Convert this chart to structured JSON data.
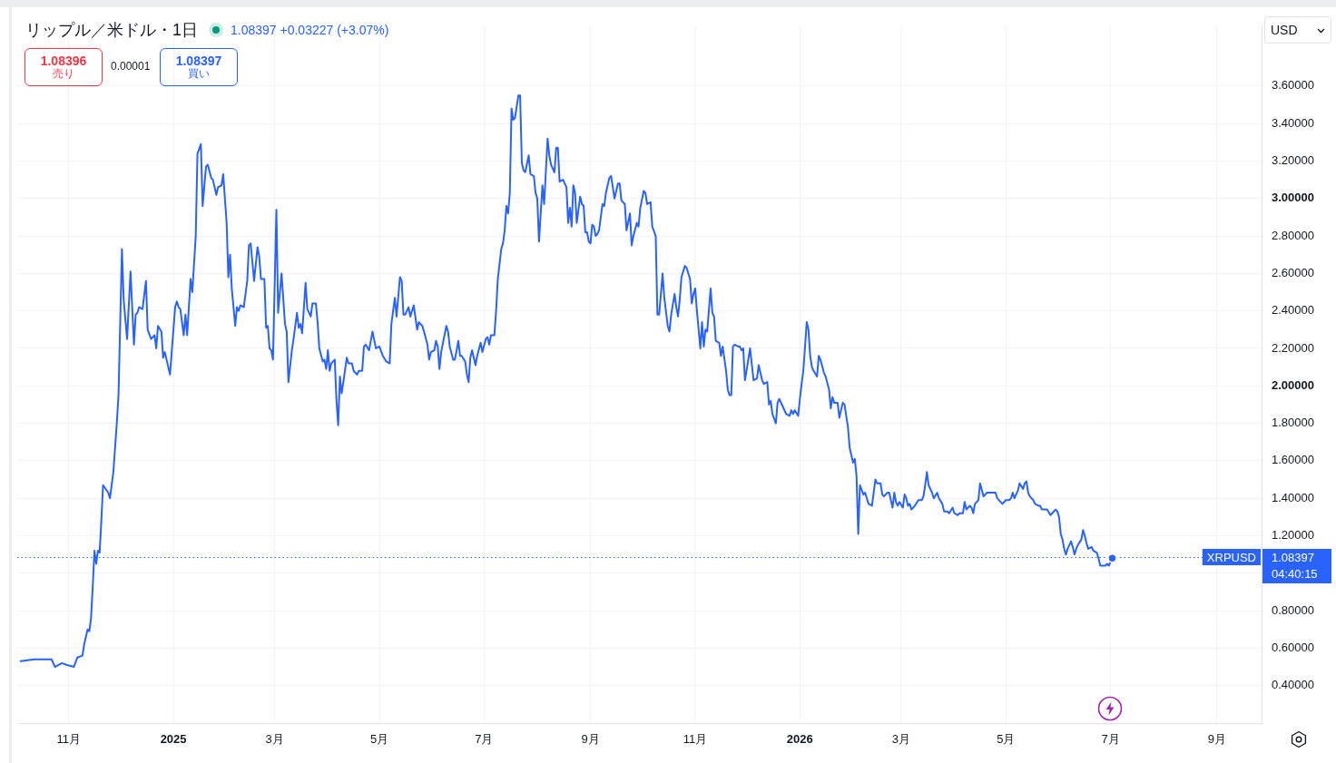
{
  "chart_data": {
    "type": "line",
    "title": "リップル／米ドル・1日",
    "subtitle": "1.08397 +0.03227 (+3.07%)",
    "x": [
      "2024-10-04",
      "2024-10-12",
      "2024-10-22",
      "2024-10-24",
      "2024-10-28",
      "2024-10-31",
      "2024-11-04",
      "2024-11-06",
      "2024-11-09",
      "2024-11-10",
      "2024-11-12",
      "2024-11-13",
      "2024-11-14",
      "2024-11-15",
      "2024-11-16",
      "2024-11-17",
      "2024-11-18",
      "2024-11-19",
      "2024-11-20",
      "2024-11-21",
      "2024-11-24",
      "2024-11-25",
      "2024-11-27",
      "2024-11-29",
      "2024-11-30",
      "2024-12-02",
      "2024-12-03",
      "2024-12-05",
      "2024-12-07",
      "2024-12-09",
      "2024-12-10",
      "2024-12-11",
      "2024-12-12",
      "2024-12-14",
      "2024-12-16",
      "2024-12-17",
      "2024-12-19",
      "2024-12-21",
      "2024-12-22",
      "2024-12-23",
      "2024-12-25",
      "2024-12-26",
      "2024-12-27",
      "2024-12-30",
      "2025-01-02",
      "2025-01-03",
      "2025-01-04",
      "2025-01-05",
      "2025-01-07",
      "2025-01-08",
      "2025-01-09",
      "2025-01-11",
      "2025-01-12",
      "2025-01-14",
      "2025-01-15",
      "2025-01-17",
      "2025-01-18",
      "2025-01-20",
      "2025-01-21",
      "2025-01-23",
      "2025-01-24",
      "2025-01-26",
      "2025-01-27",
      "2025-01-29",
      "2025-01-30",
      "2025-02-01",
      "2025-02-02",
      "2025-02-03",
      "2025-02-04",
      "2025-02-06",
      "2025-02-07",
      "2025-02-08",
      "2025-02-09",
      "2025-02-11",
      "2025-02-13",
      "2025-02-14",
      "2025-02-15",
      "2025-02-17",
      "2025-02-19",
      "2025-02-20",
      "2025-02-21",
      "2025-02-23",
      "2025-02-24",
      "2025-02-25",
      "2025-02-26",
      "2025-02-27",
      "2025-02-28",
      "2025-03-02",
      "2025-03-03",
      "2025-03-05",
      "2025-03-07",
      "2025-03-08",
      "2025-03-09",
      "2025-03-11",
      "2025-03-12",
      "2025-03-14",
      "2025-03-15",
      "2025-03-16",
      "2025-03-17",
      "2025-03-19",
      "2025-03-20",
      "2025-03-22",
      "2025-03-23",
      "2025-03-25",
      "2025-03-26",
      "2025-03-27",
      "2025-03-29",
      "2025-03-30",
      "2025-03-31",
      "2025-04-01",
      "2025-04-02",
      "2025-04-03",
      "2025-04-05",
      "2025-04-06",
      "2025-04-07",
      "2025-04-08",
      "2025-04-09",
      "2025-04-10",
      "2025-04-12",
      "2025-04-13",
      "2025-04-15",
      "2025-04-16",
      "2025-04-18",
      "2025-04-19",
      "2025-04-21",
      "2025-04-22",
      "2025-04-23",
      "2025-04-25",
      "2025-04-27",
      "2025-04-29",
      "2025-05-01",
      "2025-05-03",
      "2025-05-05",
      "2025-05-07",
      "2025-05-08",
      "2025-05-10",
      "2025-05-11",
      "2025-05-13",
      "2025-05-14",
      "2025-05-15",
      "2025-05-16",
      "2025-05-18",
      "2025-05-19",
      "2025-05-21",
      "2025-05-23",
      "2025-05-24",
      "2025-05-26",
      "2025-05-27",
      "2025-05-29",
      "2025-05-30",
      "2025-05-31",
      "2025-06-02",
      "2025-06-03",
      "2025-06-04",
      "2025-06-05",
      "2025-06-06",
      "2025-06-09",
      "2025-06-10",
      "2025-06-11",
      "2025-06-13",
      "2025-06-14",
      "2025-06-16",
      "2025-06-17",
      "2025-06-18",
      "2025-06-20",
      "2025-06-21",
      "2025-06-22",
      "2025-06-23",
      "2025-06-24",
      "2025-06-26",
      "2025-06-27",
      "2025-06-29",
      "2025-06-30",
      "2025-07-02",
      "2025-07-03",
      "2025-07-04",
      "2025-07-05",
      "2025-07-07",
      "2025-07-08",
      "2025-07-09",
      "2025-07-11",
      "2025-07-12",
      "2025-07-13",
      "2025-07-14",
      "2025-07-15",
      "2025-07-16",
      "2025-07-17",
      "2025-07-18",
      "2025-07-19",
      "2025-07-21",
      "2025-07-22",
      "2025-07-23",
      "2025-07-24",
      "2025-07-25",
      "2025-07-27",
      "2025-07-28",
      "2025-07-30",
      "2025-07-31",
      "2025-08-01",
      "2025-08-02",
      "2025-08-04",
      "2025-08-05",
      "2025-08-07",
      "2025-08-08",
      "2025-08-09",
      "2025-08-11",
      "2025-08-12",
      "2025-08-13",
      "2025-08-14",
      "2025-08-16",
      "2025-08-18",
      "2025-08-19",
      "2025-08-20",
      "2025-08-21",
      "2025-08-22",
      "2025-08-23",
      "2025-08-24",
      "2025-08-26",
      "2025-08-27",
      "2025-08-28",
      "2025-08-29",
      "2025-08-30",
      "2025-08-31",
      "2025-09-01",
      "2025-09-02",
      "2025-09-03",
      "2025-09-04",
      "2025-09-05",
      "2025-09-06",
      "2025-09-08",
      "2025-09-09",
      "2025-09-10",
      "2025-09-12",
      "2025-09-13",
      "2025-09-15",
      "2025-09-17",
      "2025-09-18",
      "2025-09-19",
      "2025-09-21",
      "2025-09-22",
      "2025-09-24",
      "2025-09-25",
      "2025-09-26",
      "2025-09-28",
      "2025-09-29",
      "2025-09-30",
      "2025-10-02",
      "2025-10-03",
      "2025-10-04",
      "2025-10-06",
      "2025-10-07",
      "2025-10-09",
      "2025-10-10",
      "2025-10-11",
      "2025-10-13",
      "2025-10-14",
      "2025-10-16",
      "2025-10-17",
      "2025-10-18",
      "2025-10-20",
      "2025-10-21",
      "2025-10-22",
      "2025-10-23",
      "2025-10-24",
      "2025-10-26",
      "2025-10-27",
      "2025-10-29",
      "2025-10-30",
      "2025-10-31",
      "2025-11-01",
      "2025-11-02",
      "2025-11-04",
      "2025-11-05",
      "2025-11-06",
      "2025-11-07",
      "2025-11-08",
      "2025-11-10",
      "2025-11-11",
      "2025-11-12",
      "2025-11-13",
      "2025-11-15",
      "2025-11-16",
      "2025-11-17",
      "2025-11-19",
      "2025-11-20",
      "2025-11-21",
      "2025-11-22",
      "2025-11-23",
      "2025-11-24",
      "2025-11-26",
      "2025-11-27",
      "2025-11-28",
      "2025-11-29",
      "2025-11-30",
      "2025-12-03",
      "2025-12-05",
      "2025-12-07",
      "2025-12-08",
      "2025-12-10",
      "2025-12-11",
      "2025-12-13",
      "2025-12-14",
      "2025-12-15",
      "2025-12-16",
      "2025-12-18",
      "2025-12-19",
      "2025-12-20",
      "2025-12-22",
      "2025-12-24",
      "2025-12-26",
      "2025-12-27",
      "2025-12-28",
      "2025-12-29",
      "2025-12-31",
      "2026-01-01",
      "2026-01-02",
      "2026-01-03",
      "2026-01-05",
      "2026-01-06",
      "2026-01-07",
      "2026-01-08",
      "2026-01-09",
      "2026-01-11",
      "2026-01-12",
      "2026-01-13",
      "2026-01-15",
      "2026-01-16",
      "2026-01-18",
      "2026-01-19",
      "2026-01-20",
      "2026-01-21",
      "2026-01-23",
      "2026-01-24",
      "2026-01-26",
      "2026-01-27",
      "2026-01-29",
      "2026-01-30",
      "2026-02-01",
      "2026-02-02",
      "2026-02-03",
      "2026-02-04",
      "2026-02-05",
      "2026-02-07",
      "2026-02-08",
      "2026-02-10",
      "2026-02-12",
      "2026-02-14",
      "2026-02-15",
      "2026-02-17",
      "2026-02-18",
      "2026-02-19",
      "2026-02-21",
      "2026-02-22",
      "2026-02-24",
      "2026-02-25",
      "2026-02-26",
      "2026-02-27",
      "2026-02-28",
      "2026-03-02",
      "2026-03-03",
      "2026-03-04",
      "2026-03-05",
      "2026-03-06",
      "2026-03-07",
      "2026-03-09",
      "2026-03-11",
      "2026-03-13",
      "2026-03-14",
      "2026-03-15",
      "2026-03-16",
      "2026-03-17",
      "2026-03-19",
      "2026-03-20",
      "2026-03-22",
      "2026-03-23",
      "2026-03-25",
      "2026-03-26",
      "2026-03-28",
      "2026-03-29",
      "2026-03-31",
      "2026-04-01",
      "2026-04-03",
      "2026-04-04",
      "2026-04-06",
      "2026-04-07",
      "2026-04-08",
      "2026-04-10",
      "2026-04-11",
      "2026-04-12",
      "2026-04-13",
      "2026-04-15",
      "2026-04-16",
      "2026-04-18",
      "2026-04-20",
      "2026-04-21",
      "2026-04-23",
      "2026-04-25",
      "2026-04-26",
      "2026-04-28",
      "2026-04-29",
      "2026-05-01",
      "2026-05-03",
      "2026-05-04",
      "2026-05-05",
      "2026-05-06",
      "2026-05-08",
      "2026-05-09",
      "2026-05-11",
      "2026-05-12",
      "2026-05-13",
      "2026-05-14",
      "2026-05-15",
      "2026-05-17",
      "2026-05-18",
      "2026-05-20",
      "2026-05-21",
      "2026-05-22",
      "2026-05-24",
      "2026-05-25",
      "2026-05-27",
      "2026-05-28",
      "2026-05-30",
      "2026-05-31",
      "2026-06-01",
      "2026-06-02",
      "2026-06-03",
      "2026-06-04",
      "2026-06-05",
      "2026-06-06",
      "2026-06-08",
      "2026-06-09",
      "2026-06-10",
      "2026-06-11",
      "2026-06-12",
      "2026-06-14",
      "2026-06-15",
      "2026-06-16",
      "2026-06-17",
      "2026-06-18",
      "2026-06-20",
      "2026-06-21",
      "2026-06-23",
      "2026-06-24",
      "2026-06-25",
      "2026-06-27",
      "2026-06-28",
      "2026-06-29",
      "2026-06-30",
      "2026-07-01",
      "2026-07-02"
    ],
    "series": [
      {
        "color": "#2962ff",
        "values": [
          0.53,
          0.54,
          0.54,
          0.5,
          0.52,
          0.51,
          0.5,
          0.55,
          0.56,
          0.62,
          0.7,
          0.69,
          0.76,
          0.93,
          1.12,
          1.05,
          1.12,
          1.11,
          1.28,
          1.47,
          1.43,
          1.4,
          1.54,
          1.8,
          1.95,
          2.73,
          2.46,
          2.25,
          2.61,
          2.22,
          2.38,
          2.39,
          2.42,
          2.41,
          2.56,
          2.3,
          2.25,
          2.27,
          2.2,
          2.32,
          2.29,
          2.15,
          2.18,
          2.06,
          2.42,
          2.45,
          2.42,
          2.41,
          2.27,
          2.38,
          2.27,
          2.57,
          2.5,
          2.8,
          3.24,
          3.29,
          2.96,
          3.17,
          3.18,
          3.11,
          3.1,
          3.02,
          3.06,
          3.07,
          3.13,
          2.87,
          2.58,
          2.7,
          2.52,
          2.32,
          2.42,
          2.4,
          2.43,
          2.42,
          2.56,
          2.75,
          2.76,
          2.56,
          2.74,
          2.69,
          2.57,
          2.57,
          2.31,
          2.32,
          2.2,
          2.19,
          2.14,
          2.94,
          2.39,
          2.6,
          2.33,
          2.29,
          2.02,
          2.19,
          2.25,
          2.39,
          2.31,
          2.33,
          2.28,
          2.55,
          2.41,
          2.37,
          2.44,
          2.44,
          2.34,
          2.2,
          2.13,
          2.14,
          2.09,
          2.19,
          2.08,
          2.12,
          2.14,
          1.92,
          1.79,
          2.05,
          1.96,
          2.02,
          2.15,
          2.12,
          2.12,
          2.08,
          2.06,
          2.08,
          2.08,
          2.21,
          2.22,
          2.19,
          2.29,
          2.2,
          2.21,
          2.16,
          2.13,
          2.12,
          2.33,
          2.47,
          2.37,
          2.58,
          2.56,
          2.38,
          2.38,
          2.42,
          2.37,
          2.43,
          2.3,
          2.34,
          2.32,
          2.29,
          2.22,
          2.14,
          2.18,
          2.19,
          2.24,
          2.21,
          2.09,
          2.18,
          2.32,
          2.29,
          2.21,
          2.14,
          2.14,
          2.24,
          2.16,
          2.16,
          2.13,
          2.06,
          2.02,
          2.15,
          2.19,
          2.11,
          2.16,
          2.23,
          2.18,
          2.25,
          2.26,
          2.22,
          2.27,
          2.27,
          2.4,
          2.57,
          2.73,
          2.76,
          2.83,
          2.96,
          2.92,
          3.03,
          3.48,
          3.42,
          3.43,
          3.55,
          3.55,
          3.19,
          3.15,
          3.14,
          3.23,
          3.13,
          3.12,
          3.03,
          3.0,
          2.77,
          3.07,
          2.97,
          3.32,
          3.23,
          3.18,
          3.14,
          3.27,
          3.27,
          3.09,
          3.1,
          3.06,
          2.87,
          2.95,
          2.85,
          3.07,
          3.03,
          2.87,
          3.01,
          2.97,
          2.96,
          2.82,
          2.82,
          2.77,
          2.76,
          2.86,
          2.85,
          2.8,
          2.81,
          2.83,
          2.97,
          2.96,
          3.03,
          3.11,
          3.12,
          3.0,
          3.08,
          3.08,
          2.99,
          2.97,
          2.83,
          2.92,
          2.75,
          2.8,
          2.87,
          2.85,
          2.95,
          3.04,
          3.03,
          2.97,
          2.98,
          2.85,
          2.8,
          2.38,
          2.38,
          2.6,
          2.47,
          2.32,
          2.29,
          2.38,
          2.49,
          2.42,
          2.37,
          2.46,
          2.58,
          2.64,
          2.63,
          2.57,
          2.44,
          2.49,
          2.52,
          2.4,
          2.2,
          2.34,
          2.21,
          2.3,
          2.29,
          2.52,
          2.39,
          2.37,
          2.24,
          2.23,
          2.16,
          2.21,
          2.08,
          1.98,
          1.95,
          1.95,
          2.21,
          2.22,
          2.21,
          2.21,
          2.19,
          2.2,
          2.03,
          2.2,
          2.03,
          2.04,
          2.11,
          2.03,
          2.01,
          2.02,
          1.9,
          1.92,
          1.85,
          1.8,
          1.91,
          1.93,
          1.89,
          1.85,
          1.84,
          1.87,
          1.85,
          1.87,
          1.84,
          1.93,
          2.01,
          2.08,
          2.34,
          2.3,
          2.16,
          2.1,
          2.08,
          2.05,
          2.16,
          2.14,
          2.07,
          2.05,
          1.98,
          1.88,
          1.94,
          1.91,
          1.91,
          1.83,
          1.91,
          1.9,
          1.78,
          1.67,
          1.59,
          1.61,
          1.52,
          1.21,
          1.47,
          1.42,
          1.43,
          1.37,
          1.36,
          1.5,
          1.48,
          1.48,
          1.42,
          1.41,
          1.43,
          1.43,
          1.35,
          1.43,
          1.38,
          1.36,
          1.38,
          1.35,
          1.42,
          1.4,
          1.36,
          1.37,
          1.34,
          1.36,
          1.39,
          1.39,
          1.41,
          1.47,
          1.54,
          1.47,
          1.43,
          1.4,
          1.43,
          1.4,
          1.37,
          1.33,
          1.33,
          1.32,
          1.35,
          1.32,
          1.31,
          1.32,
          1.32,
          1.38,
          1.34,
          1.36,
          1.35,
          1.32,
          1.37,
          1.39,
          1.48,
          1.41,
          1.43,
          1.43,
          1.43,
          1.43,
          1.4,
          1.38,
          1.37,
          1.39,
          1.39,
          1.4,
          1.43,
          1.4,
          1.44,
          1.48,
          1.45,
          1.48,
          1.49,
          1.43,
          1.41,
          1.39,
          1.37,
          1.36,
          1.36,
          1.34,
          1.34,
          1.34,
          1.31,
          1.32,
          1.34,
          1.33,
          1.3,
          1.21,
          1.18,
          1.13,
          1.1,
          1.13,
          1.17,
          1.14,
          1.1,
          1.13,
          1.15,
          1.18,
          1.23,
          1.2,
          1.16,
          1.13,
          1.14,
          1.12,
          1.11,
          1.08,
          1.04,
          1.04,
          1.04,
          1.05,
          1.04,
          1.06,
          1.08
        ]
      },
      {
        "type": "scatter",
        "marker": "circle",
        "color": "#2962ff",
        "x": [
          "2026-07-02"
        ],
        "values": [
          1.08
        ]
      }
    ],
    "xlim": [
      "2024-10-02",
      "2026-09-27"
    ],
    "xticks": [
      {
        "value": "2024-11-01",
        "label": "11月"
      },
      {
        "value": "2025-01-01",
        "label": "2025"
      },
      {
        "value": "2025-03-01",
        "label": "3月"
      },
      {
        "value": "2025-05-01",
        "label": "5月"
      },
      {
        "value": "2025-07-01",
        "label": "7月"
      },
      {
        "value": "2025-09-01",
        "label": "9月"
      },
      {
        "value": "2025-11-01",
        "label": "11月"
      },
      {
        "value": "2026-01-01",
        "label": "2026"
      },
      {
        "value": "2026-03-01",
        "label": "3月"
      },
      {
        "value": "2026-05-01",
        "label": "5月"
      },
      {
        "value": "2026-07-01",
        "label": "7月"
      },
      {
        "value": "2026-09-01",
        "label": "9月"
      }
    ],
    "ylim": [
      0.2,
      3.92
    ],
    "yticks": [
      {
        "value": 0.4,
        "label": "0.40000"
      },
      {
        "value": 0.6,
        "label": "0.60000"
      },
      {
        "value": 0.8,
        "label": "0.80000"
      },
      {
        "value": 1,
        "label": null
      },
      {
        "value": 1.2,
        "label": "1.20000"
      },
      {
        "value": 1.4,
        "label": "1.40000"
      },
      {
        "value": 1.6,
        "label": "1.60000"
      },
      {
        "value": 1.8,
        "label": "1.80000"
      },
      {
        "value": 2,
        "label": "2.00000"
      },
      {
        "value": 2.2,
        "label": "2.20000"
      },
      {
        "value": 2.4,
        "label": "2.40000"
      },
      {
        "value": 2.6,
        "label": "2.60000"
      },
      {
        "value": 2.8,
        "label": "2.80000"
      },
      {
        "value": 3,
        "label": "3.00000"
      },
      {
        "value": 3.2,
        "label": "3.20000"
      },
      {
        "value": 3.4,
        "label": "3.40000"
      },
      {
        "value": 3.6,
        "label": "3.60000"
      }
    ],
    "grid": true,
    "ref_lines": [
      {
        "axis": "y",
        "value": 1.08397,
        "label": "XRPUSD",
        "color": "#2962ff",
        "line_style": "dotted"
      }
    ],
    "annotations": [
      "1.08396",
      "売り",
      "0.00001",
      "1.08397",
      "買い",
      "USD",
      "04:40:15"
    ]
  }
}
